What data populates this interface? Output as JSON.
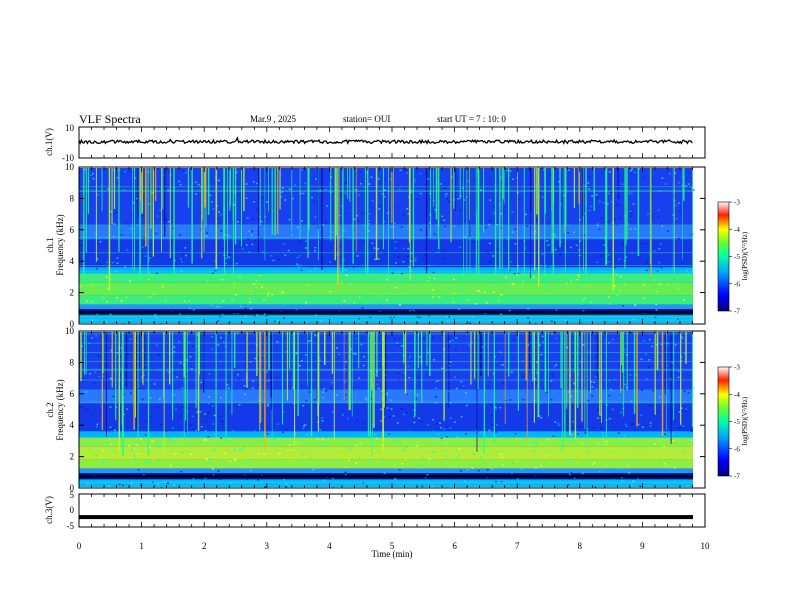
{
  "header": {
    "title": "VLF Spectra",
    "date": "Mar.9 , 2025",
    "station": "station= OUI",
    "start": "start UT = 7 : 10: 0"
  },
  "chart_data": [
    {
      "type": "line",
      "ylabel": "ch.1(V)",
      "ylim": [
        -10,
        10
      ],
      "yticks": [
        "10",
        "-10"
      ],
      "xlim": [
        0,
        10
      ],
      "trace": "noisy waveform near +0.5 V with occasional spikes",
      "series": [
        {
          "x": [
            0,
            9.8
          ],
          "values": [
            0.5,
            0.5
          ]
        }
      ]
    },
    {
      "type": "heatmap",
      "ylabel": "ch.1\nFrequency (kHz)",
      "ylim": [
        0,
        10
      ],
      "yticks": [
        "0",
        "2",
        "4",
        "6",
        "8",
        "10"
      ],
      "xlim": [
        0,
        10
      ],
      "colorbar": {
        "label": "log(PSD)(V²/Hz)",
        "range": [
          -7,
          -3
        ],
        "ticks": [
          "-3",
          "-4",
          "-5",
          "-6",
          "-7"
        ]
      }
    },
    {
      "type": "heatmap",
      "ylabel": "ch.2\nFrequency (kHz)",
      "ylim": [
        0,
        10
      ],
      "yticks": [
        "0",
        "2",
        "4",
        "6",
        "8",
        "10"
      ],
      "xlim": [
        0,
        10
      ],
      "colorbar": {
        "label": "log(PSD)(V²/Hz)",
        "range": [
          -7,
          -3
        ],
        "ticks": [
          "-3",
          "-4",
          "-5",
          "-6",
          "-7"
        ]
      }
    },
    {
      "type": "line",
      "ylabel": "ch.3(V)",
      "ylim": [
        -5,
        5
      ],
      "yticks": [
        "5",
        "0",
        "-5"
      ],
      "xlim": [
        0,
        10
      ],
      "series": [
        {
          "x": [
            0,
            9.8
          ],
          "values": [
            -2,
            -2
          ]
        }
      ]
    }
  ],
  "xaxis": {
    "label": "Time (min)",
    "ticks": [
      "0",
      "1",
      "2",
      "3",
      "4",
      "5",
      "6",
      "7",
      "8",
      "9",
      "10"
    ]
  }
}
